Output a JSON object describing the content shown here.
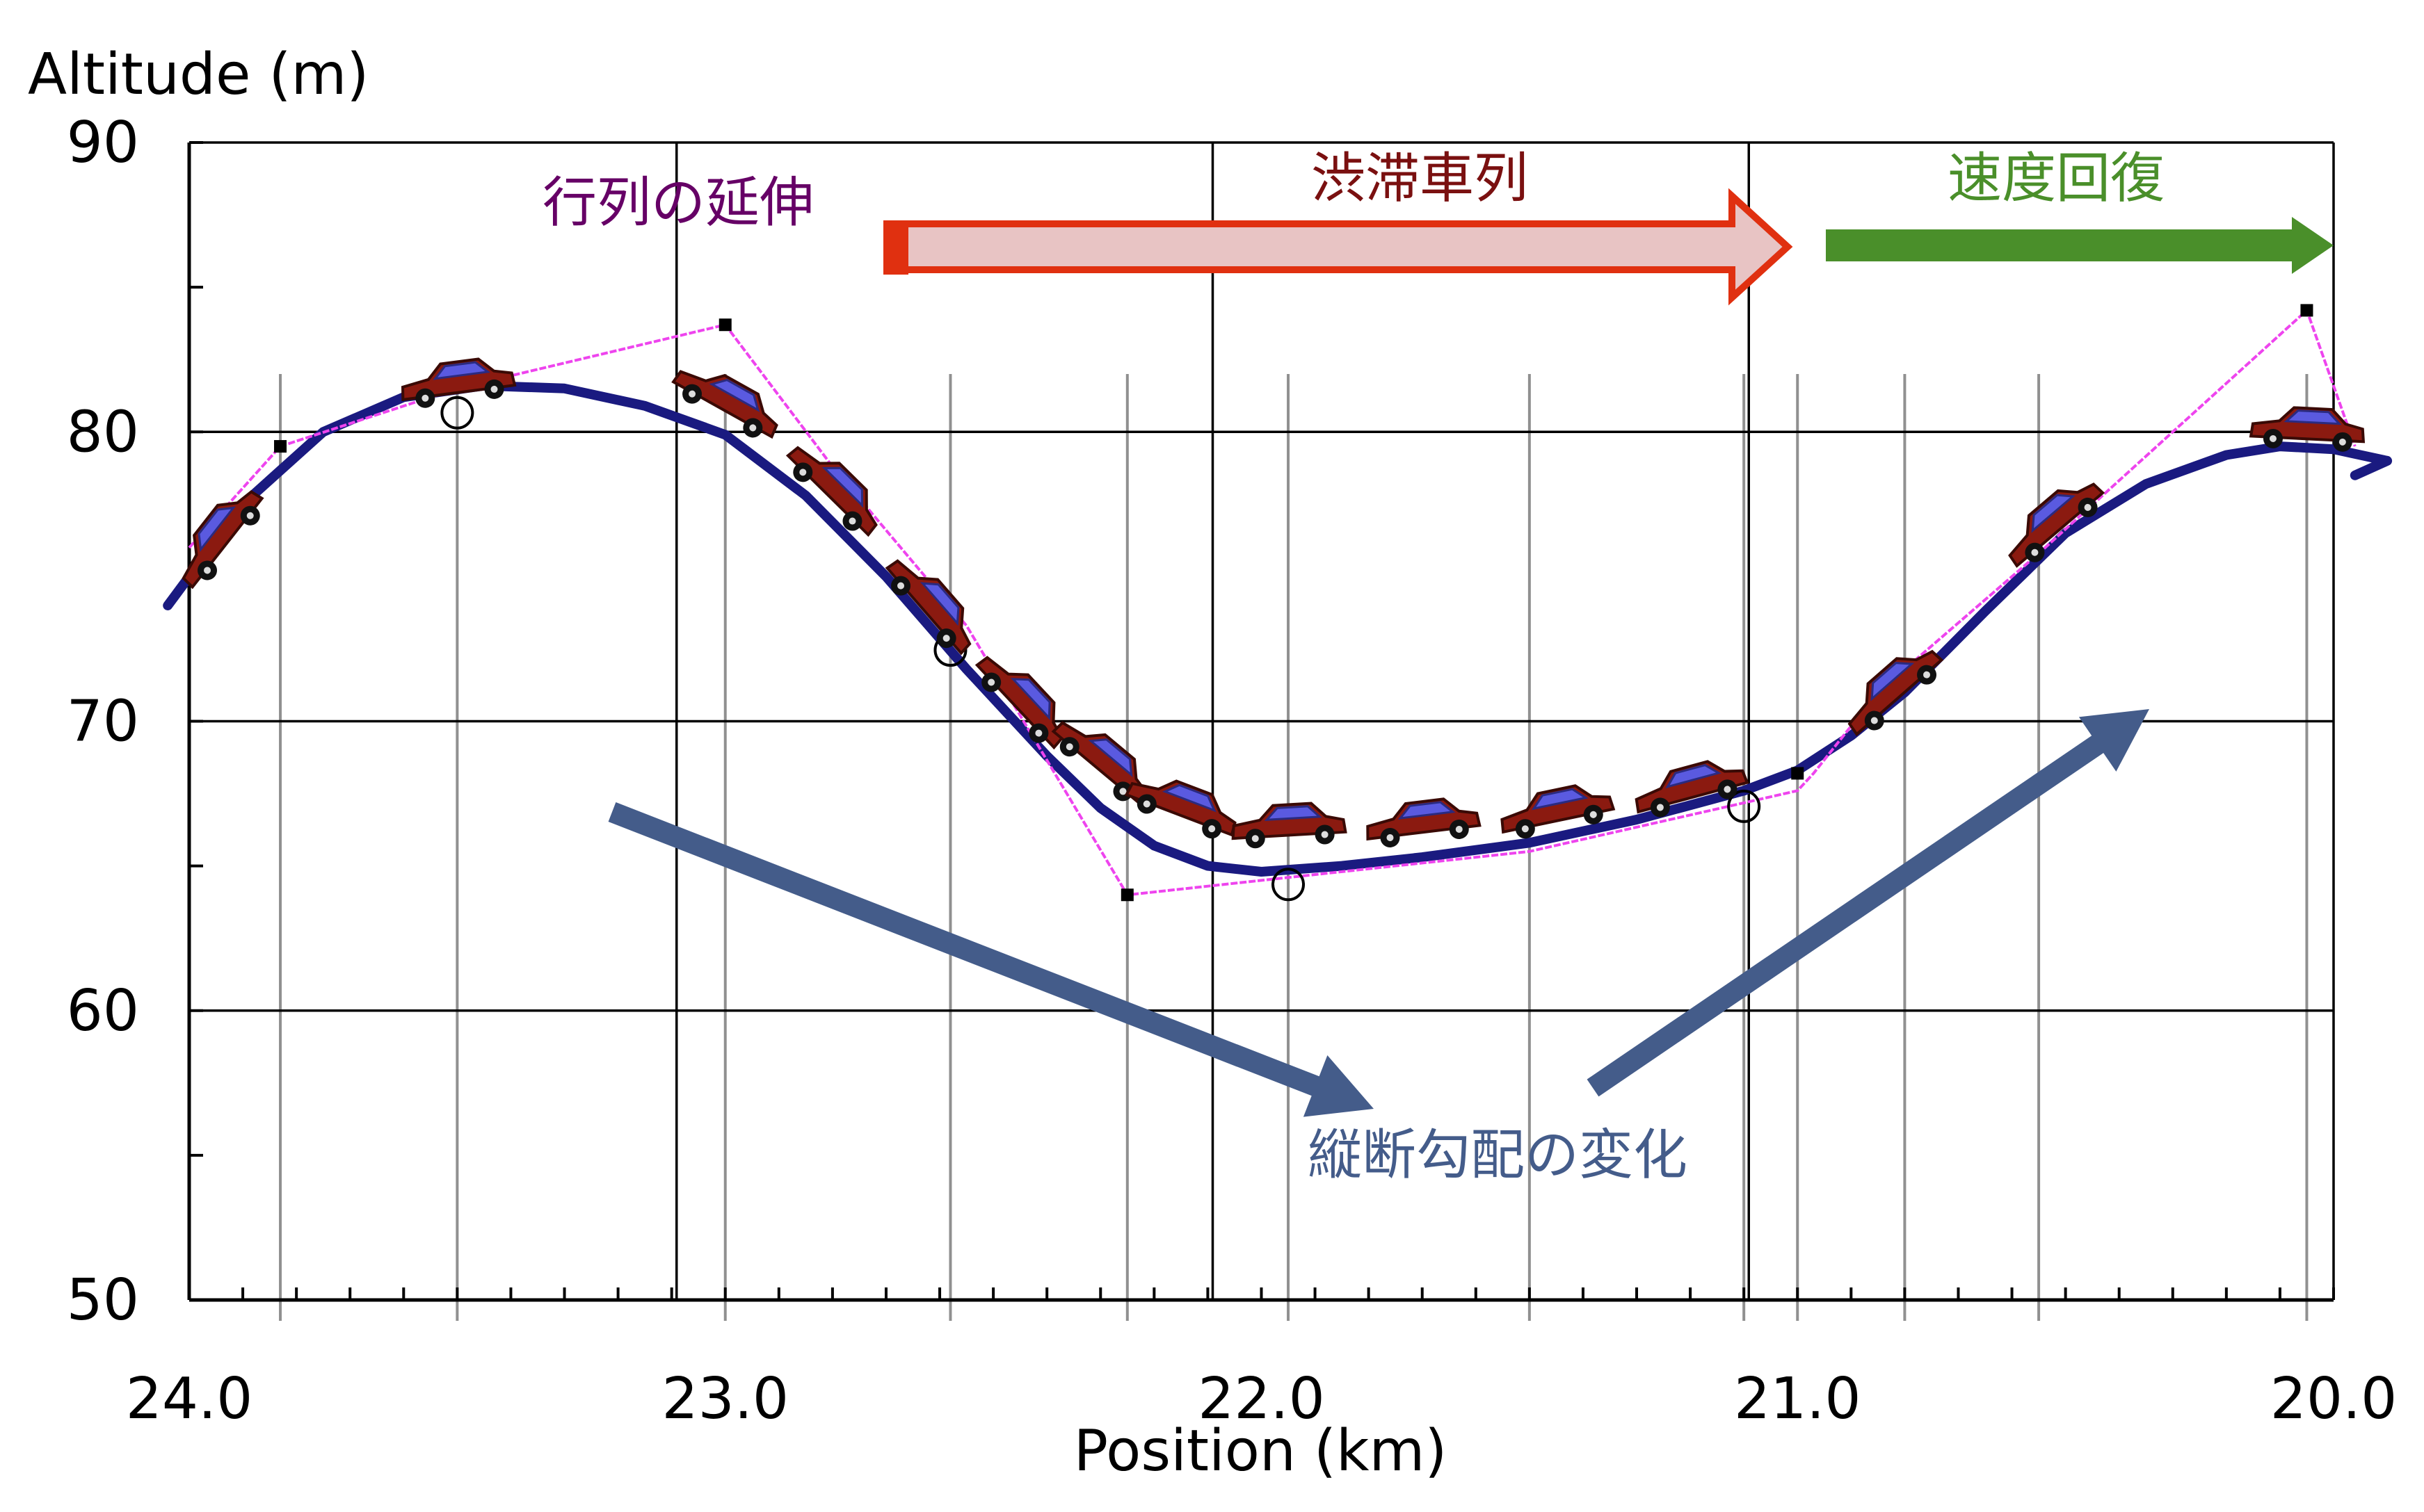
{
  "chart_data": {
    "type": "line",
    "xlabel": "Position (km)",
    "ylabel": "Altitude (m)",
    "xlim": [
      24.0,
      19.98
    ],
    "ylim": [
      50,
      90
    ],
    "x_ticks": [
      24.0,
      23.0,
      22.0,
      21.0,
      20.0
    ],
    "x_tick_labels": [
      "24.0",
      "23.0",
      "22.0",
      "21.0",
      "20.0"
    ],
    "y_ticks": [
      50,
      60,
      70,
      80,
      90
    ],
    "y_tick_labels": [
      "50",
      "60",
      "70",
      "80",
      "90"
    ],
    "grid": true,
    "series": [
      {
        "color": "#1a1a80",
        "x": [
          24.04,
          23.9,
          23.75,
          23.6,
          23.45,
          23.3,
          23.15,
          23.0,
          22.85,
          22.7,
          22.55,
          22.4,
          22.3,
          22.2,
          22.1,
          22.0,
          21.85,
          21.7,
          21.5,
          21.3,
          21.1,
          21.0,
          20.9,
          20.8,
          20.65,
          20.5,
          20.35,
          20.2,
          20.1,
          20.0,
          19.9,
          19.96
        ],
        "y": [
          74,
          77.5,
          80.0,
          81.2,
          81.6,
          81.5,
          80.9,
          79.9,
          77.8,
          75.0,
          71.8,
          68.8,
          67.0,
          65.7,
          65.0,
          64.8,
          65.0,
          65.3,
          65.8,
          66.6,
          67.6,
          68.3,
          69.5,
          71.0,
          73.8,
          76.5,
          78.2,
          79.2,
          79.5,
          79.4,
          79.0,
          78.5
        ]
      },
      {
        "color": "#ee44ee",
        "x": [
          24.0,
          23.83,
          23.5,
          23.0,
          22.8,
          22.55,
          22.25,
          22.0,
          21.5,
          21.0,
          20.97,
          20.85,
          20.55,
          20.05,
          19.96
        ],
        "y": [
          76,
          79.5,
          81.5,
          83.7,
          78.8,
          73.3,
          64.0,
          64.5,
          65.5,
          67.6,
          68.2,
          71.0,
          75.8,
          84.2,
          79.5
        ]
      }
    ],
    "point_markers": {
      "color": "#000000",
      "x": [
        23.83,
        23.0,
        22.25,
        21.0,
        20.05
      ],
      "y": [
        79.5,
        83.7,
        64.0,
        68.2,
        84.2
      ]
    },
    "open_circles": {
      "x": [
        23.5,
        22.58,
        21.95,
        21.1
      ],
      "y": [
        80.9,
        72.7,
        64.6,
        67.3
      ]
    },
    "cars": {
      "color": "#8b1a10",
      "x": [
        23.94,
        23.5,
        23.0,
        22.8,
        22.62,
        22.45,
        22.3,
        22.15,
        21.95,
        21.7,
        21.45,
        21.2,
        20.82,
        20.52,
        20.05
      ],
      "y": [
        76.3,
        81.6,
        81.0,
        78.0,
        74.0,
        70.7,
        68.6,
        67.0,
        66.3,
        66.4,
        66.8,
        67.6,
        71.0,
        76.8,
        80.0
      ]
    },
    "vertical_guides": [
      23.83,
      23.5,
      23.0,
      22.58,
      22.25,
      21.95,
      21.5,
      21.1,
      21.0,
      20.8,
      20.55,
      20.05
    ],
    "annotations": {
      "queue_extension": "行列の延伸",
      "congestion": "渋滞車列",
      "speed_recovery": "速度回復",
      "grade_change": "縦断勾配の変化"
    },
    "colors": {
      "queue_extension": "#660066",
      "congestion_text": "#7a1010",
      "congestion_arrow_stroke": "#e03010",
      "congestion_arrow_fill": "#e8c4c4",
      "speed_recovery": "#4a8f2a",
      "grade_change": "#445c8a"
    }
  }
}
